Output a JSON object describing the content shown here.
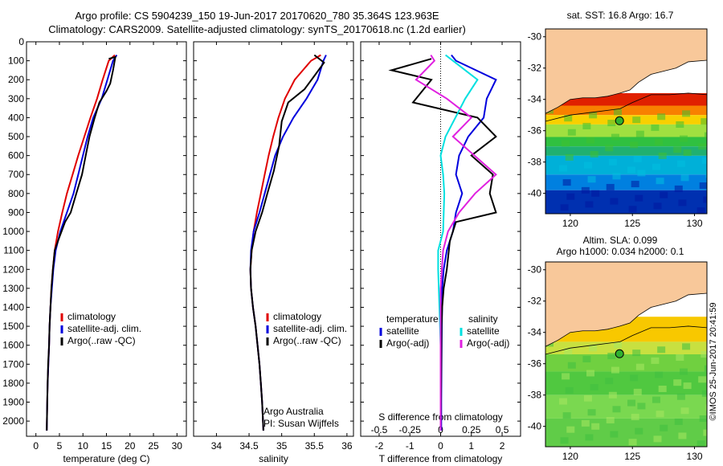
{
  "header": {
    "line1": "Argo profile: CS 5904239_150 19-Jun-2017 20170620_780 35.364S 123.963E",
    "line2": "Climatology: CARS2009. Satellite-adjusted climatology: synTS_20170618.nc (1.2d earlier)"
  },
  "colors": {
    "climatology": "#e00000",
    "satellite": "#0000dd",
    "argo": "#000000",
    "salinity_satellite": "#00e0e0",
    "salinity_argo": "#e020e0",
    "land": "#f8c89a"
  },
  "chart_data": [
    {
      "type": "line",
      "name": "temperature-profile",
      "xlabel": "temperature (deg C)",
      "ylabel": "",
      "xlim": [
        -2,
        32
      ],
      "ylim": [
        2080,
        0
      ],
      "xticks": [
        "0",
        "5",
        "10",
        "15",
        "20",
        "25",
        "30"
      ],
      "xtick_values": [
        0,
        5,
        10,
        15,
        20,
        25,
        30
      ],
      "yticks": [
        "0",
        "100",
        "200",
        "300",
        "400",
        "500",
        "600",
        "700",
        "800",
        "900",
        "1000",
        "1100",
        "1200",
        "1300",
        "1400",
        "1500",
        "1600",
        "1700",
        "1800",
        "1900",
        "2000"
      ],
      "ytick_values": [
        0,
        100,
        200,
        300,
        400,
        500,
        600,
        700,
        800,
        900,
        1000,
        1100,
        1200,
        1300,
        1400,
        1500,
        1600,
        1700,
        1800,
        1900,
        2000
      ],
      "legend": [
        "climatology",
        "satellite-adj. clim.",
        "Argo(..raw -QC)"
      ],
      "series": [
        {
          "name": "climatology",
          "color": "#e00000",
          "x": [
            16.8,
            15.5,
            14.2,
            13.0,
            11.6,
            10.3,
            9.0,
            7.8,
            6.6,
            5.6,
            4.7,
            4.0,
            3.6,
            3.3,
            3.1,
            2.9,
            2.8,
            2.65,
            2.5,
            2.4,
            2.3
          ],
          "y": [
            70,
            100,
            200,
            300,
            400,
            500,
            600,
            700,
            800,
            900,
            1000,
            1100,
            1200,
            1300,
            1400,
            1500,
            1600,
            1700,
            1800,
            1900,
            2050
          ]
        },
        {
          "name": "satellite-adj. clim.",
          "color": "#0000dd",
          "x": [
            17.2,
            16.4,
            15.2,
            14.0,
            12.2,
            11.0,
            10.0,
            9.0,
            8.0,
            6.6,
            5.2,
            4.2,
            3.7,
            3.4,
            3.1,
            2.9,
            2.8,
            2.65,
            2.5,
            2.4,
            2.3
          ],
          "y": [
            70,
            100,
            200,
            300,
            400,
            500,
            600,
            700,
            800,
            900,
            1000,
            1100,
            1200,
            1300,
            1400,
            1500,
            1600,
            1700,
            1800,
            1900,
            2050
          ]
        },
        {
          "name": "Argo(..raw -QC)",
          "color": "#000000",
          "x": [
            15.5,
            16.9,
            16.4,
            15.8,
            15.0,
            13.5,
            12.5,
            11.4,
            10.6,
            9.8,
            8.6,
            7.4,
            6.2,
            4.7,
            4.0,
            3.6,
            3.3,
            3.1,
            2.9,
            2.8,
            2.6,
            2.5,
            2.4,
            2.3
          ],
          "y": [
            90,
            80,
            150,
            220,
            260,
            320,
            400,
            500,
            600,
            700,
            800,
            900,
            950,
            1050,
            1100,
            1200,
            1300,
            1400,
            1500,
            1600,
            1700,
            1800,
            1900,
            2050
          ]
        }
      ]
    },
    {
      "type": "line",
      "name": "salinity-profile",
      "xlabel": "salinity",
      "xlim": [
        33.65,
        36.1
      ],
      "ylim": [
        2080,
        0
      ],
      "xticks": [
        "34",
        "34.5",
        "35",
        "35.5",
        "36"
      ],
      "xtick_values": [
        34,
        34.5,
        35,
        35.5,
        36
      ],
      "legend": [
        "climatology",
        "satellite-adj. clim.",
        "Argo(..raw -QC)"
      ],
      "annotation": [
        "Argo Australia",
        "PI: Susan Wijffels"
      ],
      "series": [
        {
          "name": "climatology",
          "color": "#e00000",
          "x": [
            35.6,
            35.45,
            35.2,
            35.05,
            34.95,
            34.87,
            34.8,
            34.74,
            34.68,
            34.62,
            34.57,
            34.54,
            34.52,
            34.53,
            34.56,
            34.6,
            34.63,
            34.66,
            34.68,
            34.7,
            34.72
          ],
          "y": [
            70,
            100,
            200,
            300,
            400,
            500,
            600,
            700,
            800,
            900,
            1000,
            1100,
            1200,
            1300,
            1400,
            1500,
            1600,
            1700,
            1800,
            1900,
            2050
          ]
        },
        {
          "name": "satellite-adj. clim.",
          "color": "#0000dd",
          "x": [
            35.68,
            35.64,
            35.55,
            35.38,
            35.18,
            35.02,
            34.9,
            34.82,
            34.74,
            34.66,
            34.57,
            34.53,
            34.52,
            34.53,
            34.56,
            34.6,
            34.63,
            34.66,
            34.68,
            34.7,
            34.72
          ],
          "y": [
            70,
            100,
            200,
            300,
            400,
            500,
            600,
            700,
            800,
            900,
            1000,
            1100,
            1200,
            1300,
            1400,
            1500,
            1600,
            1700,
            1800,
            1900,
            2050
          ]
        },
        {
          "name": "Argo(..raw -QC)",
          "color": "#000000",
          "x": [
            35.5,
            35.65,
            35.5,
            35.35,
            35.1,
            35.0,
            34.96,
            34.88,
            34.78,
            34.7,
            34.6,
            34.54,
            34.52,
            34.53,
            34.56,
            34.6,
            34.63,
            34.66,
            34.68,
            34.7,
            34.72
          ],
          "y": [
            70,
            110,
            180,
            250,
            320,
            420,
            550,
            680,
            800,
            900,
            1000,
            1100,
            1200,
            1300,
            1400,
            1500,
            1600,
            1700,
            1800,
            1900,
            2050
          ]
        }
      ]
    },
    {
      "type": "line",
      "name": "difference-profile",
      "xlabel": "T difference from climatology",
      "xlabel_top": "S difference from climatology",
      "xlim": [
        -2.6,
        2.6
      ],
      "ylim": [
        2080,
        0
      ],
      "xticks": [
        "-2",
        "-1",
        "0",
        "1",
        "2"
      ],
      "xtick_values": [
        -2,
        -1,
        0,
        1,
        2
      ],
      "sticks": [
        "-0.5",
        "-0.25",
        "0",
        "0.25",
        "0.5"
      ],
      "stick_values": [
        -0.5,
        -0.25,
        0,
        0.25,
        0.5
      ],
      "legend_temperature_title": "temperature",
      "legend_salinity_title": "salinity",
      "legend": [
        "satellite",
        "Argo(-adj)",
        "satellite",
        "Argo(-adj)"
      ],
      "series": [
        {
          "name": "temperature satellite",
          "color": "#0000dd",
          "x": [
            0.35,
            0.5,
            1.8,
            1.5,
            1.4,
            0.9,
            0.6,
            0.5,
            0.7,
            0.5,
            0.4,
            0.2,
            0.1,
            0.05,
            0.05,
            0.04,
            0.03,
            0.02,
            0.02
          ],
          "y": [
            70,
            100,
            200,
            300,
            400,
            500,
            600,
            700,
            800,
            900,
            1000,
            1100,
            1200,
            1300,
            1400,
            1500,
            1700,
            1900,
            2050
          ]
        },
        {
          "name": "temperature Argo(-adj)",
          "color": "#000000",
          "x": [
            -0.3,
            -1.6,
            -0.3,
            -0.9,
            1.2,
            1.8,
            1.0,
            1.7,
            1.6,
            1.8,
            0.5,
            0.3,
            0.2,
            0.1,
            0.05,
            0.03,
            0.02,
            0.0
          ],
          "y": [
            90,
            150,
            200,
            320,
            400,
            500,
            600,
            700,
            800,
            900,
            950,
            1050,
            1200,
            1300,
            1400,
            1500,
            1700,
            2050
          ]
        },
        {
          "name": "salinity satellite",
          "color": "#00e0e0",
          "x": [
            0.04,
            0.1,
            0.3,
            0.2,
            0.12,
            0.04,
            0.0,
            0.02,
            0.03,
            0.02,
            -0.02,
            -0.02,
            -0.01,
            0.0,
            0.0,
            0.0
          ],
          "y": [
            70,
            100,
            200,
            300,
            400,
            500,
            600,
            700,
            800,
            1000,
            1100,
            1200,
            1400,
            1600,
            1800,
            2050
          ]
        },
        {
          "name": "salinity Argo(-adj)",
          "color": "#e020e0",
          "x": [
            -0.08,
            -0.05,
            -0.2,
            0.05,
            0.25,
            0.1,
            0.45,
            0.28,
            0.15,
            0.06,
            0.02,
            0.0,
            0.0,
            0.0
          ],
          "y": [
            70,
            100,
            200,
            300,
            400,
            500,
            700,
            800,
            900,
            1000,
            1100,
            1300,
            1600,
            2050
          ]
        }
      ]
    },
    {
      "type": "heatmap",
      "name": "sst-map",
      "title": "sat. SST: 16.8 Argo: 16.7",
      "xlim": [
        118,
        131
      ],
      "ylim": [
        -41.3,
        -29.5
      ],
      "xticks": [
        "120",
        "125",
        "130"
      ],
      "xtick_values": [
        120,
        125,
        130
      ],
      "yticks": [
        "-30",
        "-32",
        "-34",
        "-36",
        "-38",
        "-40"
      ],
      "ytick_values": [
        -30,
        -32,
        -34,
        -36,
        -38,
        -40
      ],
      "float_position": {
        "lon": 123.963,
        "lat": -35.364
      }
    },
    {
      "type": "heatmap",
      "name": "sla-map",
      "title": "Altim. SLA: 0.099",
      "subtitle": "Argo h1000: 0.034 h2000: 0.1",
      "xlim": [
        118,
        131
      ],
      "ylim": [
        -41.3,
        -29.5
      ],
      "xticks": [
        "120",
        "125",
        "130"
      ],
      "xtick_values": [
        120,
        125,
        130
      ],
      "yticks": [
        "-30",
        "-32",
        "-34",
        "-36",
        "-38",
        "-40"
      ],
      "ytick_values": [
        -30,
        -32,
        -34,
        -36,
        -38,
        -40
      ],
      "float_position": {
        "lon": 123.963,
        "lat": -35.364
      }
    }
  ],
  "stamp": "©IMOS 25-Jun-2017 20:41:59"
}
